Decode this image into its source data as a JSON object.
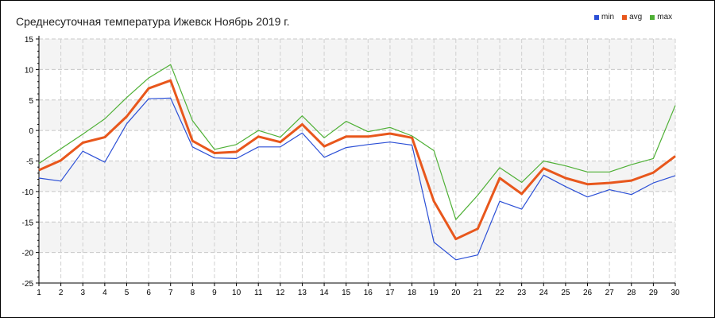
{
  "chart_data": {
    "type": "line",
    "title": "Среднесуточная температура Ижевск  Ноябрь 2019 г.",
    "xlabel": "",
    "ylabel": "",
    "x": [
      1,
      2,
      3,
      4,
      5,
      6,
      7,
      8,
      9,
      10,
      11,
      12,
      13,
      14,
      15,
      16,
      17,
      18,
      19,
      20,
      21,
      22,
      23,
      24,
      25,
      26,
      27,
      28,
      29,
      30
    ],
    "ylim": [
      -25,
      15
    ],
    "yticks": [
      15,
      10,
      5,
      0,
      -5,
      -10,
      -15,
      -20,
      -25
    ],
    "grid": true,
    "legend_position": "top-right",
    "series": [
      {
        "name": "min",
        "color": "#2b4fd6",
        "values": [
          -7.8,
          -8.3,
          -3.4,
          -5.2,
          1.1,
          5.2,
          5.3,
          -2.7,
          -4.5,
          -4.6,
          -2.7,
          -2.7,
          -0.4,
          -4.4,
          -2.8,
          -2.3,
          -1.9,
          -2.4,
          -18.3,
          -21.2,
          -20.4,
          -11.6,
          -12.9,
          -7.3,
          -9.2,
          -10.9,
          -9.7,
          -10.5,
          -8.6,
          -7.4
        ]
      },
      {
        "name": "avg",
        "color": "#e8571c",
        "values": [
          -6.5,
          -4.9,
          -2.0,
          -1.1,
          2.3,
          6.9,
          8.2,
          -1.7,
          -3.7,
          -3.5,
          -1.0,
          -1.9,
          1.0,
          -2.6,
          -1.0,
          -1.0,
          -0.5,
          -1.2,
          -11.6,
          -17.8,
          -16.1,
          -7.8,
          -10.4,
          -6.2,
          -7.8,
          -8.8,
          -8.6,
          -8.2,
          -6.9,
          -4.2
        ]
      },
      {
        "name": "max",
        "color": "#4eb035",
        "values": [
          -5.4,
          -3.0,
          -0.6,
          1.9,
          5.4,
          8.6,
          10.8,
          1.6,
          -3.1,
          -2.3,
          0.0,
          -1.1,
          2.4,
          -1.2,
          1.5,
          -0.2,
          0.5,
          -0.9,
          -3.3,
          -14.6,
          -10.6,
          -6.1,
          -8.5,
          -5.0,
          -5.8,
          -6.8,
          -6.8,
          -5.6,
          -4.6,
          4.1
        ]
      }
    ]
  }
}
